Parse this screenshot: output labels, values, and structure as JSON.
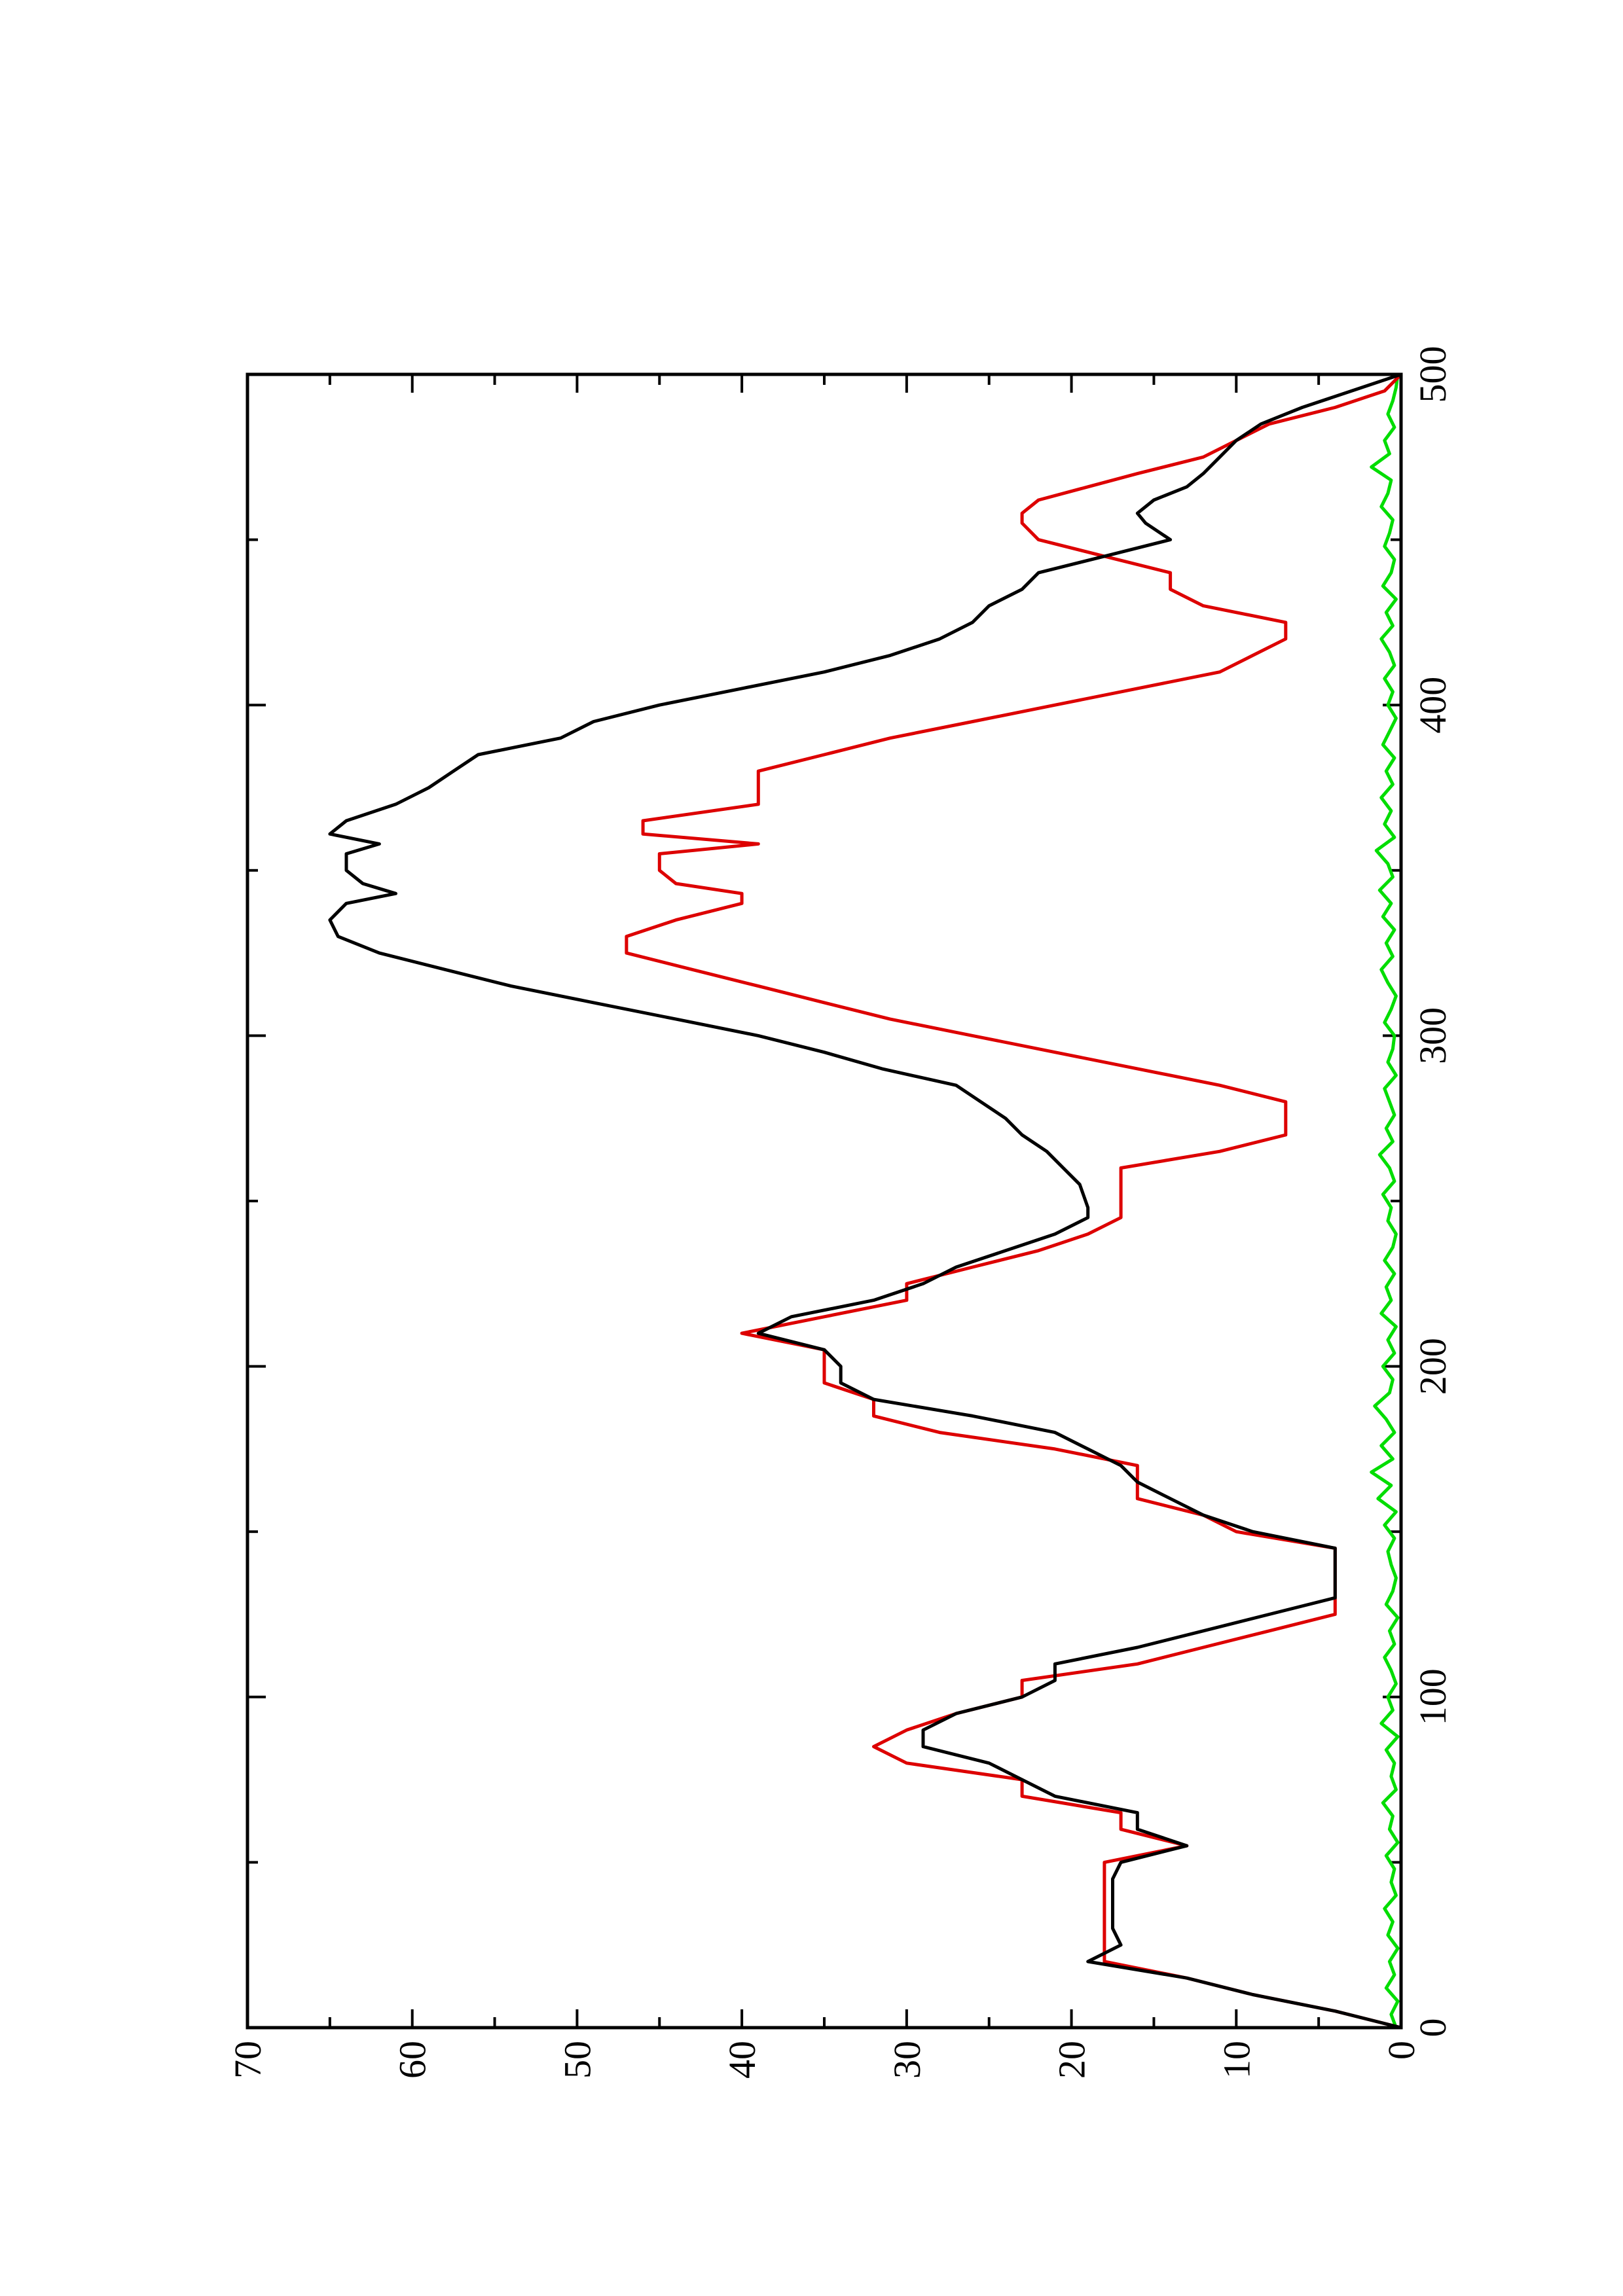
{
  "chart_data": {
    "type": "line",
    "orientation": "rotated 90° counter-clockwise (x axis runs vertically, y axis horizontally)",
    "title": "",
    "xlabel": "",
    "ylabel": "",
    "xlim": [
      0,
      500
    ],
    "ylim": [
      0,
      70
    ],
    "x_ticks": [
      "0",
      "100",
      "200",
      "300",
      "400",
      "500"
    ],
    "y_ticks": [
      "0",
      "10",
      "20",
      "30",
      "40",
      "50",
      "60",
      "70"
    ],
    "grid": false,
    "legend": "none",
    "series": [
      {
        "color": "#000000",
        "x": [
          0,
          5,
          10,
          15,
          20,
          25,
          30,
          35,
          40,
          45,
          50,
          55,
          60,
          65,
          70,
          75,
          80,
          85,
          90,
          95,
          100,
          105,
          110,
          115,
          120,
          125,
          130,
          135,
          140,
          145,
          150,
          155,
          160,
          165,
          170,
          175,
          180,
          185,
          190,
          195,
          200,
          205,
          210,
          215,
          220,
          225,
          230,
          235,
          240,
          245,
          248,
          255,
          260,
          265,
          270,
          275,
          280,
          285,
          290,
          295,
          300,
          305,
          310,
          315,
          320,
          325,
          330,
          335,
          340,
          343,
          346,
          350,
          355,
          358,
          361,
          365,
          370,
          375,
          380,
          385,
          390,
          395,
          400,
          405,
          410,
          415,
          420,
          425,
          430,
          435,
          440,
          445,
          450,
          455,
          458,
          462,
          466,
          470,
          475,
          480,
          485,
          490,
          495,
          500
        ],
        "y": [
          0,
          4,
          9,
          13,
          19,
          17,
          17.5,
          17.5,
          17.5,
          17.5,
          17,
          13,
          16,
          16,
          21,
          23,
          25,
          29,
          29,
          27,
          23,
          21,
          21,
          16,
          12,
          8,
          4,
          4,
          4,
          4,
          9,
          12,
          14,
          16,
          17,
          19,
          21,
          26,
          32,
          34,
          34,
          35,
          39,
          37,
          32,
          29,
          27,
          24,
          21,
          19,
          19,
          19.5,
          20.5,
          21.5,
          23,
          24,
          25.5,
          27,
          31.5,
          35,
          39,
          44,
          49,
          54,
          58,
          62,
          64.5,
          65,
          64,
          61,
          63,
          64,
          64,
          62,
          65,
          64,
          61,
          59,
          57.5,
          56,
          51,
          49,
          45,
          40,
          35,
          31,
          28,
          26,
          25,
          23,
          22,
          18,
          14,
          15.5,
          16,
          15,
          13,
          12,
          11,
          10,
          8.5,
          6,
          3,
          0
        ]
      },
      {
        "color": "#dd0000",
        "x": [
          0,
          5,
          10,
          15,
          20,
          25,
          30,
          35,
          40,
          45,
          50,
          55,
          60,
          65,
          70,
          75,
          80,
          85,
          90,
          95,
          100,
          105,
          110,
          115,
          120,
          125,
          130,
          135,
          140,
          145,
          150,
          155,
          160,
          165,
          170,
          175,
          180,
          185,
          190,
          195,
          200,
          205,
          210,
          215,
          220,
          225,
          230,
          235,
          240,
          245,
          250,
          255,
          260,
          265,
          270,
          275,
          280,
          285,
          290,
          295,
          300,
          305,
          310,
          315,
          320,
          325,
          330,
          335,
          340,
          343,
          346,
          350,
          355,
          358,
          361,
          365,
          370,
          375,
          380,
          385,
          390,
          395,
          400,
          405,
          410,
          415,
          420,
          425,
          430,
          435,
          440,
          445,
          450,
          455,
          458,
          462,
          466,
          470,
          475,
          480,
          485,
          490,
          495,
          500
        ],
        "y": [
          0,
          4,
          9,
          13,
          18,
          18,
          18,
          18,
          18,
          18,
          18,
          13,
          17,
          17,
          23,
          23,
          30,
          32,
          30,
          27,
          23,
          23,
          16,
          12,
          8,
          4,
          4,
          4,
          4,
          4,
          10,
          12,
          16,
          16,
          16,
          21,
          28,
          32,
          32,
          35,
          35,
          35,
          40,
          35,
          30,
          30,
          26,
          22,
          19,
          17,
          17,
          17,
          17,
          11,
          7,
          7,
          7,
          11,
          16,
          21,
          26,
          31,
          35,
          39,
          43,
          47,
          47,
          44,
          40,
          40,
          44,
          45,
          45,
          39,
          46,
          46,
          39,
          39,
          39,
          35,
          31,
          26,
          21,
          16,
          11,
          9,
          7,
          7,
          12,
          14,
          14,
          18,
          22,
          23,
          23,
          22,
          19,
          16,
          12,
          10,
          8,
          4,
          1,
          0
        ]
      },
      {
        "color": "#00dd00",
        "x": [
          0,
          4,
          8,
          12,
          16,
          20,
          24,
          28,
          32,
          36,
          40,
          44,
          48,
          52,
          56,
          60,
          64,
          68,
          72,
          76,
          80,
          84,
          88,
          92,
          96,
          100,
          104,
          108,
          112,
          116,
          120,
          124,
          128,
          132,
          136,
          140,
          144,
          148,
          152,
          156,
          160,
          164,
          168,
          172,
          176,
          180,
          184,
          188,
          192,
          196,
          200,
          204,
          208,
          212,
          216,
          220,
          224,
          228,
          232,
          236,
          240,
          244,
          248,
          252,
          256,
          260,
          264,
          268,
          272,
          276,
          280,
          284,
          288,
          292,
          296,
          300,
          304,
          308,
          312,
          316,
          320,
          324,
          328,
          332,
          336,
          340,
          344,
          348,
          352,
          356,
          360,
          364,
          368,
          372,
          376,
          380,
          384,
          388,
          392,
          396,
          400,
          404,
          408,
          412,
          416,
          420,
          424,
          428,
          432,
          436,
          440,
          444,
          448,
          452,
          456,
          460,
          464,
          468,
          472,
          476,
          480,
          484,
          488,
          492,
          496,
          500
        ],
        "y": [
          0.3,
          0.6,
          0.2,
          0.9,
          0.4,
          0.7,
          0.2,
          0.8,
          0.5,
          1.0,
          0.3,
          0.6,
          0.4,
          0.9,
          0.2,
          0.7,
          0.5,
          1.1,
          0.3,
          0.6,
          0.4,
          0.9,
          0.2,
          1.2,
          0.5,
          0.8,
          0.3,
          0.6,
          1.0,
          0.4,
          0.7,
          0.2,
          0.9,
          0.5,
          0.3,
          0.6,
          0.8,
          0.4,
          1.0,
          0.3,
          1.4,
          0.6,
          1.8,
          0.5,
          1.2,
          0.4,
          0.9,
          1.6,
          0.7,
          0.5,
          1.1,
          0.4,
          0.8,
          0.3,
          1.2,
          0.6,
          0.9,
          0.4,
          1.0,
          0.5,
          0.3,
          0.8,
          0.6,
          1.1,
          0.4,
          0.7,
          1.3,
          0.5,
          0.9,
          0.4,
          0.7,
          1.0,
          0.3,
          0.8,
          0.5,
          0.4,
          1.0,
          0.6,
          0.3,
          0.8,
          1.2,
          0.5,
          0.9,
          0.4,
          1.1,
          0.6,
          1.3,
          0.5,
          0.8,
          1.5,
          0.4,
          1.0,
          0.6,
          1.2,
          0.5,
          0.9,
          0.4,
          1.1,
          0.7,
          0.3,
          0.8,
          0.5,
          1.0,
          0.4,
          0.7,
          1.2,
          0.5,
          0.9,
          0.3,
          1.1,
          0.6,
          0.4,
          1.0,
          0.7,
          0.5,
          1.2,
          0.8,
          0.6,
          1.8,
          0.7,
          1.0,
          0.4,
          0.8,
          0.5,
          0.3,
          0.2
        ]
      }
    ]
  }
}
